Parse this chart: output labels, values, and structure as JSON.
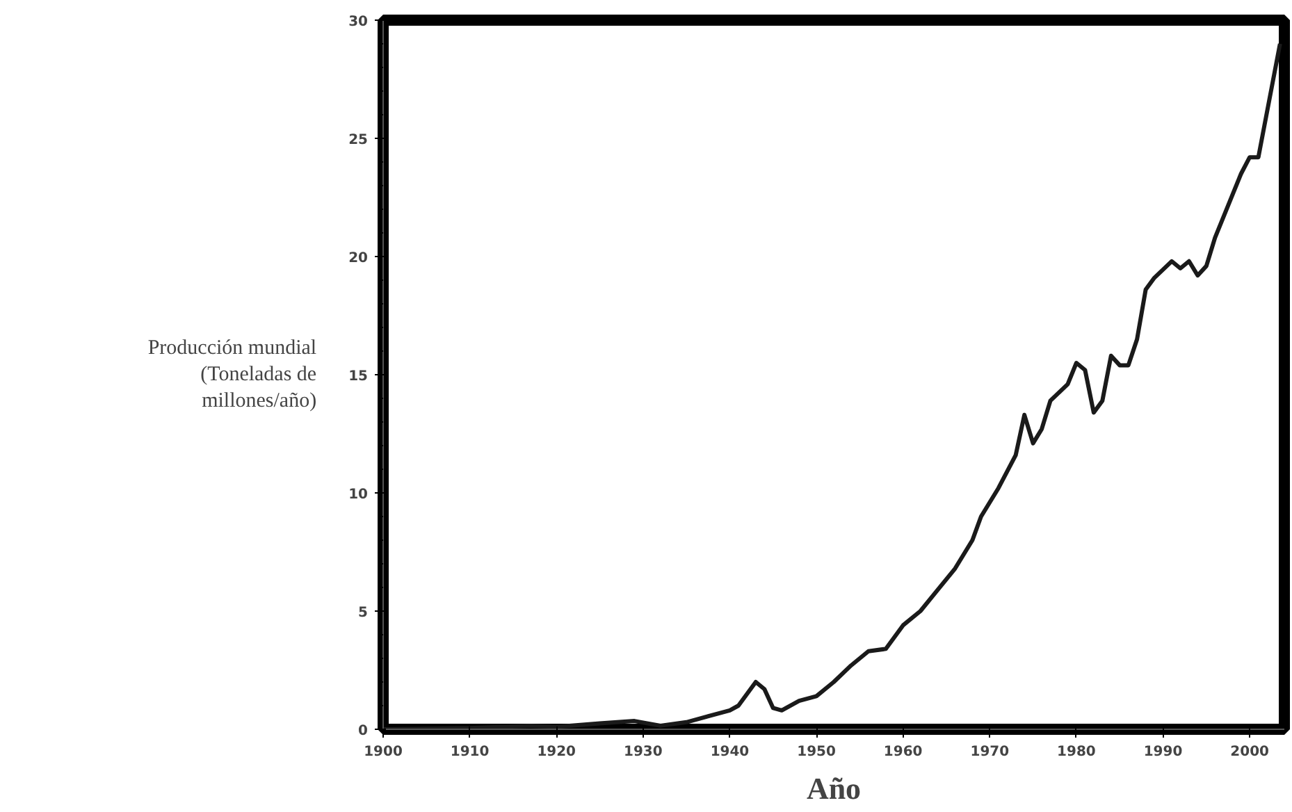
{
  "chart_data": {
    "type": "line",
    "xlabel": "Año",
    "ylabel": "Producción mundial\n(Toneladas de\nmillones/año)",
    "x": [
      1900,
      1910,
      1917,
      1920,
      1925,
      1929,
      1932,
      1935,
      1940,
      1941,
      1943,
      1944,
      1945,
      1946,
      1948,
      1950,
      1952,
      1954,
      1956,
      1958,
      1959,
      1960,
      1962,
      1964,
      1966,
      1968,
      1969,
      1971,
      1973,
      1974,
      1975,
      1976,
      1977,
      1979,
      1980,
      1981,
      1982,
      1983,
      1984,
      1985,
      1986,
      1987,
      1988,
      1989,
      1991,
      1992,
      1993,
      1994,
      1995,
      1996,
      1998,
      1999,
      2000,
      2001,
      2003.5
    ],
    "series": [
      {
        "color": "#1a1a1a",
        "values": [
          0,
          0.05,
          0.15,
          0.1,
          0.25,
          0.35,
          0.15,
          0.3,
          0.8,
          1.0,
          2.0,
          1.7,
          0.9,
          0.8,
          1.2,
          1.4,
          2.0,
          2.7,
          3.3,
          3.4,
          3.9,
          4.4,
          5.0,
          5.9,
          6.8,
          8.0,
          9.0,
          10.2,
          11.6,
          13.3,
          12.1,
          12.7,
          13.9,
          14.6,
          15.5,
          15.2,
          13.4,
          13.9,
          15.8,
          15.4,
          15.4,
          16.5,
          18.6,
          19.1,
          19.8,
          19.5,
          19.8,
          19.2,
          19.6,
          20.8,
          22.6,
          23.5,
          24.2,
          24.2,
          29
        ]
      }
    ],
    "xlim": [
      1900,
      2004
    ],
    "ylim": [
      0,
      30
    ],
    "xticks": [
      1900,
      1910,
      1920,
      1930,
      1940,
      1950,
      1960,
      1970,
      1980,
      1990,
      2000
    ],
    "yticks": [
      0,
      5,
      10,
      15,
      20,
      25,
      30
    ],
    "grid": false,
    "marker": "none",
    "line_style": "solid"
  }
}
